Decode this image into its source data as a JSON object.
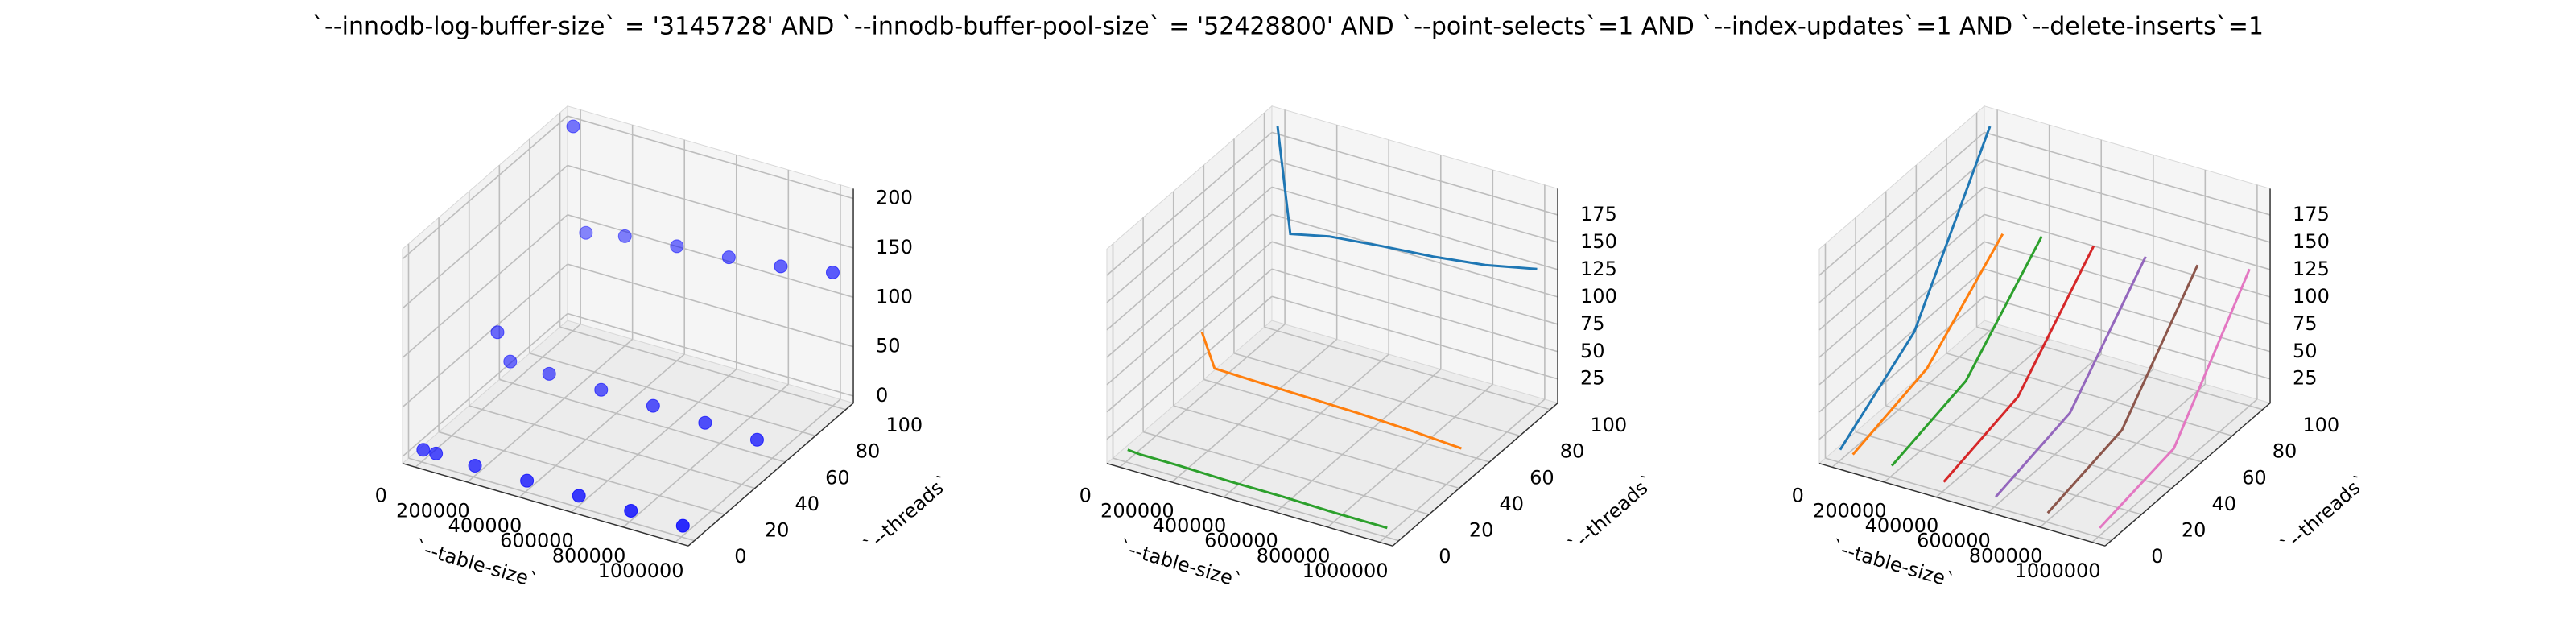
{
  "title": "`--innodb-log-buffer-size` = '3145728' AND `--innodb-buffer-pool-size` = '52428800'  AND `--point-selects`=1 AND `--index-updates`=1 AND `--delete-inserts`=1",
  "chart_data": [
    {
      "type": "scatter3d",
      "xlabel": "`--table-size`",
      "ylabel": "`--threads`",
      "xlim": [
        -50000,
        1050000
      ],
      "ylim": [
        -4,
        105
      ],
      "zlim": [
        -7,
        210
      ],
      "xticks": [
        0,
        200000,
        400000,
        600000,
        800000,
        1000000
      ],
      "yticks": [
        0,
        20,
        40,
        60,
        80,
        100
      ],
      "zticks": [
        0,
        50,
        100,
        150,
        200
      ],
      "series": [
        {
          "color": "#0000ff",
          "x": [
            1000,
            50000,
            200000,
            400000,
            600000,
            800000,
            1000000,
            1000,
            50000,
            200000,
            400000,
            600000,
            800000,
            1000000,
            1000,
            50000,
            200000,
            400000,
            600000,
            800000,
            1000000
          ],
          "y": [
            1,
            1,
            1,
            1,
            1,
            1,
            1,
            50,
            50,
            50,
            50,
            50,
            50,
            50,
            100,
            100,
            100,
            100,
            100,
            100,
            100
          ],
          "z": [
            4,
            4,
            3,
            3,
            3,
            3,
            3,
            58,
            32,
            31,
            30,
            29,
            27,
            25,
            200,
            96,
            104,
            109,
            113,
            119,
            128
          ]
        }
      ]
    },
    {
      "type": "line3d",
      "xlabel": "`--table-size`",
      "ylabel": "`--threads`",
      "xlim": [
        -50000,
        1050000
      ],
      "ylim": [
        -4,
        105
      ],
      "zlim": [
        3,
        199
      ],
      "xticks": [
        0,
        200000,
        400000,
        600000,
        800000,
        1000000
      ],
      "yticks": [
        0,
        20,
        40,
        60,
        80,
        100
      ],
      "zticks": [
        25,
        50,
        75,
        100,
        125,
        150,
        175
      ],
      "series": [
        {
          "color": "#1f77b4",
          "x": [
            1000,
            50000,
            200000,
            400000,
            600000,
            800000,
            1000000
          ],
          "y": [
            100,
            100,
            100,
            100,
            100,
            100,
            100
          ],
          "z": [
            190,
            95,
            103,
            108,
            112,
            118,
            128
          ]
        },
        {
          "color": "#ff7f0e",
          "x": [
            1000,
            50000,
            200000,
            400000,
            600000,
            800000,
            1000000
          ],
          "y": [
            50,
            50,
            50,
            50,
            50,
            50,
            50
          ],
          "z": [
            62,
            32,
            31,
            30,
            29,
            27,
            24
          ]
        },
        {
          "color": "#2ca02c",
          "x": [
            1000,
            50000,
            200000,
            400000,
            600000,
            800000,
            1000000
          ],
          "y": [
            1,
            1,
            1,
            1,
            1,
            1,
            1
          ],
          "z": [
            13,
            12,
            12,
            11,
            11,
            10,
            10
          ]
        }
      ]
    },
    {
      "type": "line3d",
      "xlabel": "`--table-size`",
      "ylabel": "`--threads`",
      "xlim": [
        -50000,
        1050000
      ],
      "ylim": [
        -4,
        105
      ],
      "zlim": [
        3,
        199
      ],
      "xticks": [
        0,
        200000,
        400000,
        600000,
        800000,
        1000000
      ],
      "yticks": [
        0,
        20,
        40,
        60,
        80,
        100
      ],
      "zticks": [
        25,
        50,
        75,
        100,
        125,
        150,
        175
      ],
      "series": [
        {
          "color": "#1f77b4",
          "x": [
            1000,
            1000,
            1000
          ],
          "y": [
            1,
            50,
            100
          ],
          "z": [
            13,
            62,
            190
          ]
        },
        {
          "color": "#ff7f0e",
          "x": [
            50000,
            50000,
            50000
          ],
          "y": [
            1,
            50,
            100
          ],
          "z": [
            12,
            32,
            95
          ]
        },
        {
          "color": "#2ca02c",
          "x": [
            200000,
            200000,
            200000
          ],
          "y": [
            1,
            50,
            100
          ],
          "z": [
            12,
            31,
            103
          ]
        },
        {
          "color": "#d62728",
          "x": [
            400000,
            400000,
            400000
          ],
          "y": [
            1,
            50,
            100
          ],
          "z": [
            11,
            30,
            108
          ]
        },
        {
          "color": "#9467bd",
          "x": [
            600000,
            600000,
            600000
          ],
          "y": [
            1,
            50,
            100
          ],
          "z": [
            11,
            29,
            112
          ]
        },
        {
          "color": "#8c564b",
          "x": [
            800000,
            800000,
            800000
          ],
          "y": [
            1,
            50,
            100
          ],
          "z": [
            10,
            27,
            118
          ]
        },
        {
          "color": "#e377c2",
          "x": [
            1000000,
            1000000,
            1000000
          ],
          "y": [
            1,
            50,
            100
          ],
          "z": [
            10,
            24,
            128
          ]
        }
      ]
    }
  ]
}
